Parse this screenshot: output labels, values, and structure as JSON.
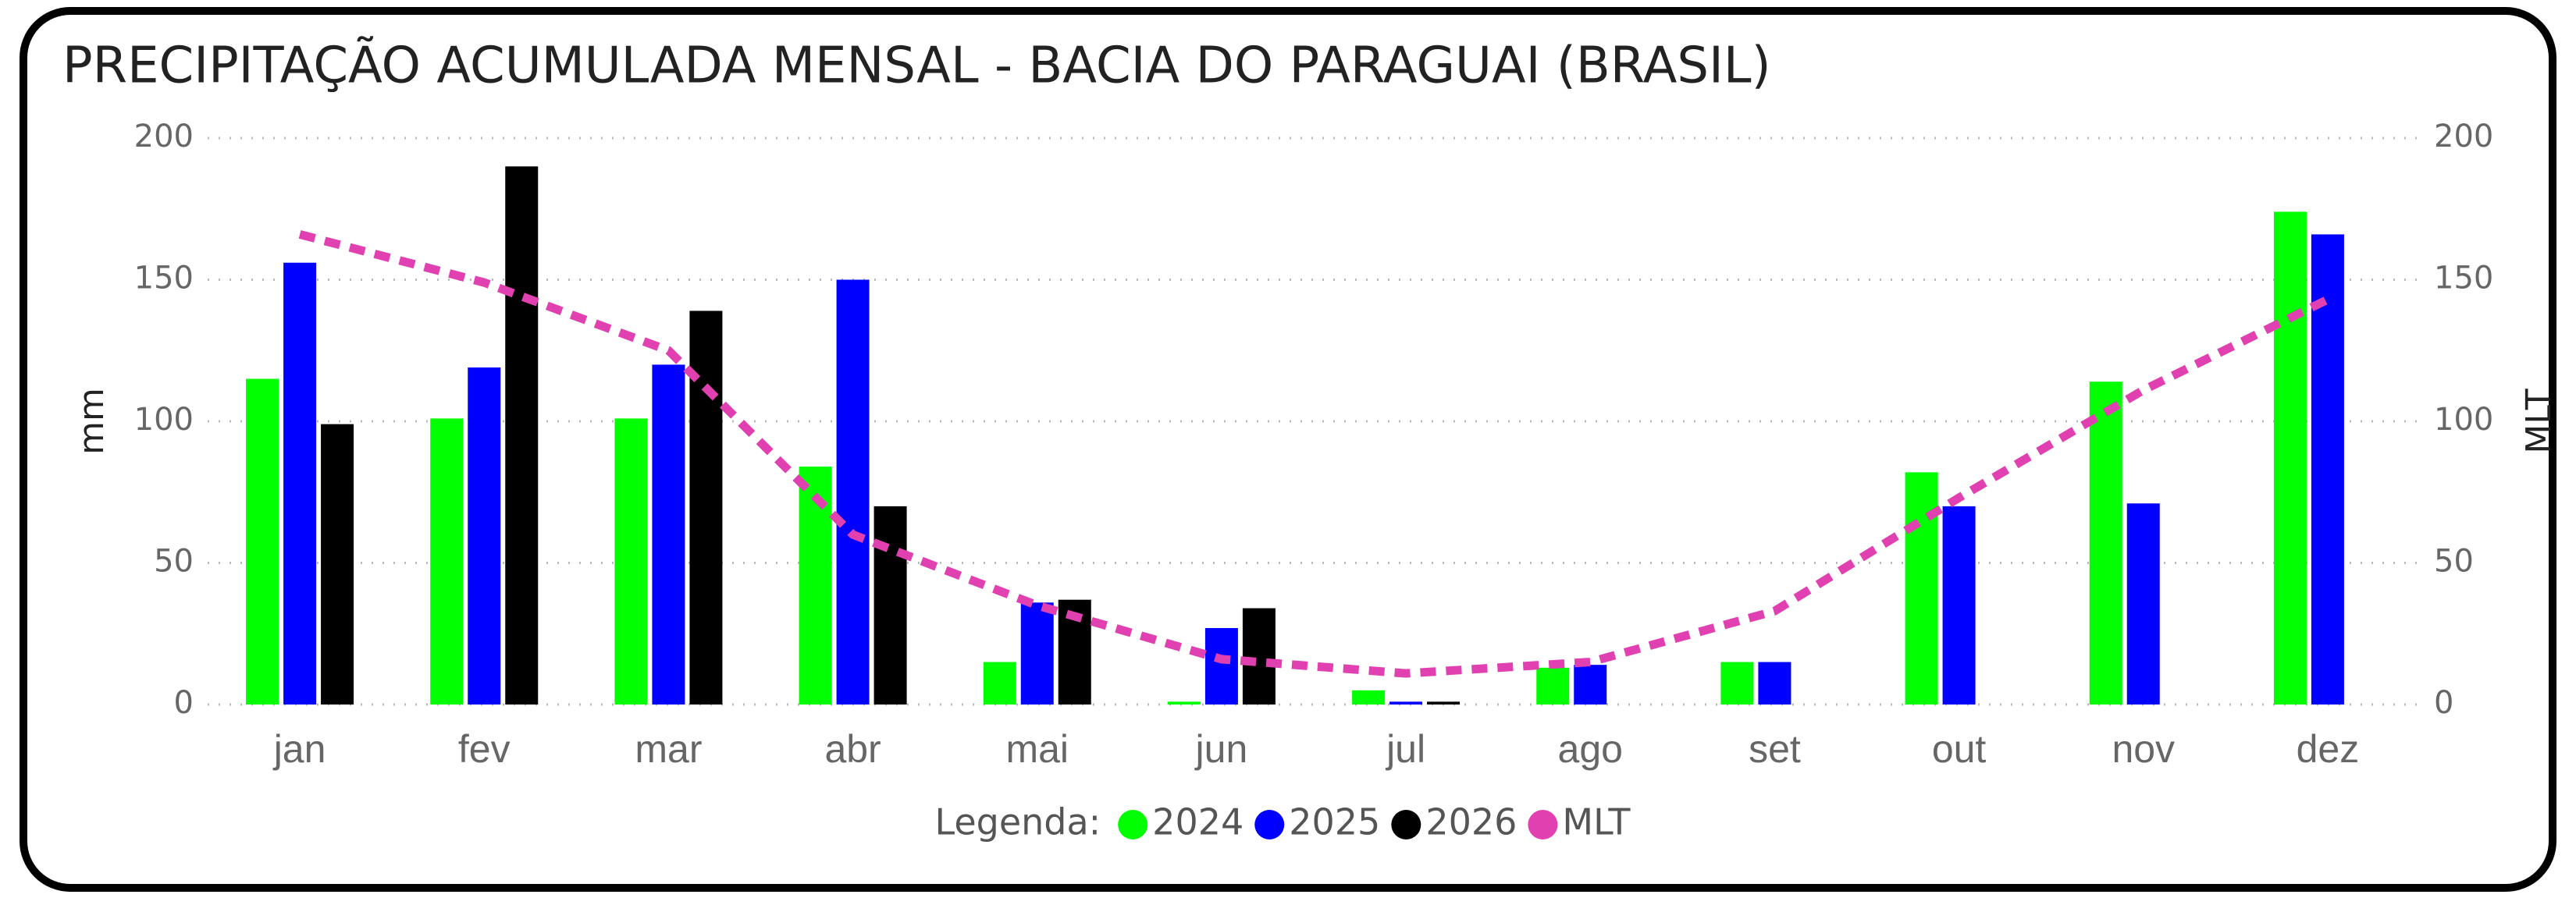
{
  "chart_data": {
    "type": "bar",
    "title": "PRECIPITAÇÃO ACUMULADA MENSAL - BACIA DO PARAGUAI (BRASIL)",
    "y_label": "mm",
    "y2_label": "MLT",
    "legend_title": "Legenda:",
    "categories": [
      "jan",
      "fev",
      "mar",
      "abr",
      "mai",
      "jun",
      "jul",
      "ago",
      "set",
      "out",
      "nov",
      "dez"
    ],
    "series": [
      {
        "name": "2024",
        "color": "#00ff00",
        "values": [
          115,
          101,
          101,
          84,
          15,
          1,
          5,
          13,
          15,
          82,
          114,
          174
        ]
      },
      {
        "name": "2025",
        "color": "#0000ff",
        "values": [
          156,
          119,
          120,
          150,
          36,
          27,
          1,
          14,
          15,
          70,
          71,
          166
        ]
      },
      {
        "name": "2026",
        "color": "#000000",
        "values": [
          99,
          190,
          139,
          70,
          37,
          34,
          1,
          null,
          null,
          null,
          null,
          null
        ]
      },
      {
        "name": "MLT",
        "color": "#e040b0",
        "type": "line",
        "axis": "y2",
        "values": [
          166,
          149,
          125,
          60,
          35,
          16,
          11,
          15,
          33,
          73,
          111,
          143
        ]
      }
    ],
    "ylim": [
      0,
      200
    ],
    "yticks": [
      0,
      50,
      100,
      150,
      200
    ],
    "y2lim": [
      0,
      200
    ],
    "y2ticks": [
      0,
      50,
      100,
      150,
      200
    ],
    "grid": true,
    "legend": "bottom"
  }
}
